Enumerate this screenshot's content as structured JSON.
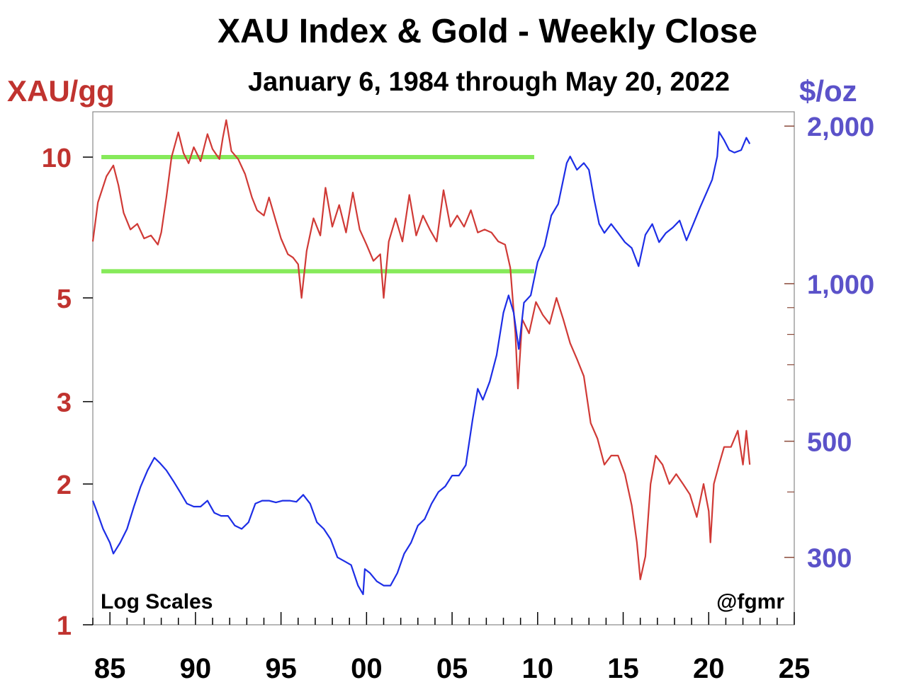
{
  "chart_data": {
    "type": "line",
    "title": "XAU Index & Gold - Weekly Close",
    "subtitle": "January 6, 1984 through May 20, 2022",
    "left_axis": {
      "label": "XAU/gg",
      "scale": "log",
      "range": [
        1,
        12.5
      ],
      "ticks": [
        1,
        2,
        3,
        5,
        10
      ],
      "tick_labels": [
        "1",
        "2",
        "3",
        "5",
        "10"
      ],
      "color": "#c0332f"
    },
    "right_axis": {
      "label": "$/oz",
      "scale": "log",
      "range": [
        223,
        2130
      ],
      "ticks": [
        300,
        500,
        1000,
        2000
      ],
      "tick_labels": [
        "300",
        "500",
        "1,000",
        "2,000"
      ],
      "color": "#5b52c9"
    },
    "x_axis": {
      "range": [
        1984,
        2025
      ],
      "ticks": [
        1985,
        1990,
        1995,
        2000,
        2005,
        2010,
        2015,
        2020,
        2025
      ],
      "tick_labels": [
        "85",
        "90",
        "95",
        "00",
        "05",
        "10",
        "15",
        "20",
        "25"
      ]
    },
    "bottom_left_note": "Log Scales",
    "bottom_right_note": "@fgmr",
    "series": [
      {
        "axis": "left",
        "color": "#d03a36",
        "x": [
          1984.0,
          1984.3,
          1984.8,
          1985.2,
          1985.5,
          1985.8,
          1986.2,
          1986.6,
          1987.0,
          1987.4,
          1987.8,
          1988.0,
          1988.3,
          1988.6,
          1989.0,
          1989.3,
          1989.6,
          1989.9,
          1990.3,
          1990.7,
          1991.0,
          1991.4,
          1991.6,
          1991.8,
          1992.1,
          1992.5,
          1992.9,
          1993.3,
          1993.6,
          1994.0,
          1994.3,
          1994.7,
          1995.0,
          1995.4,
          1995.7,
          1996.0,
          1996.2,
          1996.5,
          1996.9,
          1997.3,
          1997.6,
          1998.0,
          1998.4,
          1998.8,
          1999.2,
          1999.6,
          2000.0,
          2000.4,
          2000.8,
          2001.0,
          2001.3,
          2001.7,
          2002.1,
          2002.5,
          2002.9,
          2003.3,
          2003.7,
          2004.1,
          2004.5,
          2004.9,
          2005.3,
          2005.7,
          2006.1,
          2006.5,
          2006.9,
          2007.3,
          2007.7,
          2008.1,
          2008.4,
          2008.7,
          2008.85,
          2009.1,
          2009.5,
          2009.9,
          2010.3,
          2010.7,
          2011.1,
          2011.5,
          2011.9,
          2012.3,
          2012.7,
          2013.1,
          2013.5,
          2013.9,
          2014.3,
          2014.7,
          2015.1,
          2015.5,
          2015.8,
          2016.0,
          2016.3,
          2016.6,
          2016.9,
          2017.3,
          2017.7,
          2018.1,
          2018.5,
          2018.9,
          2019.3,
          2019.7,
          2020.0,
          2020.1,
          2020.3,
          2020.6,
          2020.9,
          2021.3,
          2021.7,
          2022.0,
          2022.2,
          2022.4
        ],
        "values": [
          6.6,
          8.0,
          9.1,
          9.6,
          8.7,
          7.6,
          7.0,
          7.2,
          6.7,
          6.8,
          6.5,
          6.9,
          8.2,
          10.0,
          11.3,
          10.2,
          9.7,
          10.5,
          9.8,
          11.2,
          10.4,
          9.9,
          11.0,
          12.0,
          10.3,
          9.9,
          9.2,
          8.2,
          7.7,
          7.5,
          8.2,
          7.3,
          6.7,
          6.2,
          6.1,
          5.9,
          5.0,
          6.3,
          7.4,
          6.8,
          8.6,
          7.1,
          7.9,
          6.9,
          8.4,
          7.0,
          6.5,
          6.0,
          6.2,
          5.0,
          6.6,
          7.4,
          6.6,
          8.3,
          6.8,
          7.5,
          7.0,
          6.6,
          8.5,
          7.1,
          7.5,
          7.1,
          7.7,
          6.9,
          7.0,
          6.9,
          6.6,
          6.5,
          5.8,
          4.2,
          3.2,
          4.5,
          4.2,
          4.9,
          4.6,
          4.4,
          5.0,
          4.5,
          4.0,
          3.7,
          3.4,
          2.7,
          2.5,
          2.2,
          2.3,
          2.3,
          2.1,
          1.8,
          1.5,
          1.25,
          1.4,
          2.0,
          2.3,
          2.2,
          2.0,
          2.1,
          2.0,
          1.9,
          1.7,
          2.0,
          1.75,
          1.5,
          2.0,
          2.2,
          2.4,
          2.4,
          2.6,
          2.2,
          2.6,
          2.2
        ],
        "legend": ""
      },
      {
        "axis": "right",
        "color": "#1d2ee6",
        "x": [
          1984.0,
          1984.2,
          1984.6,
          1985.0,
          1985.2,
          1985.6,
          1986.0,
          1986.4,
          1986.8,
          1987.2,
          1987.6,
          1987.9,
          1988.3,
          1988.7,
          1989.1,
          1989.5,
          1989.9,
          1990.3,
          1990.7,
          1991.1,
          1991.5,
          1991.9,
          1992.3,
          1992.7,
          1993.1,
          1993.5,
          1993.9,
          1994.3,
          1994.7,
          1995.1,
          1995.5,
          1995.9,
          1996.3,
          1996.7,
          1997.1,
          1997.5,
          1997.9,
          1998.3,
          1998.7,
          1999.1,
          1999.5,
          1999.8,
          1999.9,
          2000.2,
          2000.6,
          2001.0,
          2001.4,
          2001.8,
          2002.2,
          2002.6,
          2003.0,
          2003.4,
          2003.8,
          2004.2,
          2004.6,
          2005.0,
          2005.4,
          2005.8,
          2006.2,
          2006.5,
          2006.8,
          2007.2,
          2007.6,
          2008.0,
          2008.3,
          2008.6,
          2008.9,
          2009.2,
          2009.6,
          2010.0,
          2010.4,
          2010.8,
          2011.2,
          2011.7,
          2011.9,
          2012.3,
          2012.7,
          2013.0,
          2013.3,
          2013.6,
          2013.9,
          2014.3,
          2014.7,
          2015.1,
          2015.5,
          2015.9,
          2016.3,
          2016.7,
          2017.1,
          2017.5,
          2017.9,
          2018.3,
          2018.7,
          2019.1,
          2019.5,
          2019.9,
          2020.2,
          2020.5,
          2020.6,
          2020.9,
          2021.2,
          2021.5,
          2021.9,
          2022.2,
          2022.4
        ],
        "values": [
          385,
          370,
          340,
          320,
          305,
          320,
          340,
          375,
          410,
          440,
          465,
          455,
          440,
          420,
          400,
          380,
          375,
          375,
          385,
          365,
          360,
          360,
          345,
          340,
          350,
          380,
          385,
          385,
          382,
          385,
          385,
          383,
          395,
          380,
          350,
          340,
          325,
          300,
          295,
          290,
          265,
          255,
          285,
          280,
          270,
          265,
          265,
          280,
          305,
          320,
          345,
          355,
          380,
          400,
          410,
          430,
          430,
          450,
          550,
          630,
          600,
          650,
          730,
          880,
          950,
          880,
          750,
          920,
          950,
          1100,
          1180,
          1350,
          1420,
          1700,
          1750,
          1650,
          1700,
          1650,
          1450,
          1300,
          1250,
          1300,
          1250,
          1200,
          1170,
          1080,
          1240,
          1300,
          1200,
          1250,
          1280,
          1320,
          1210,
          1300,
          1400,
          1500,
          1580,
          1750,
          1950,
          1880,
          1800,
          1780,
          1800,
          1900,
          1850
        ],
        "legend": ""
      }
    ],
    "reference_lines": [
      {
        "axis": "left",
        "value": 10.0,
        "x_range": [
          1984.5,
          2009.8
        ],
        "color": "#86ea5a"
      },
      {
        "axis": "left",
        "value": 5.7,
        "x_range": [
          1984.5,
          2009.8
        ],
        "color": "#86ea5a"
      }
    ]
  }
}
